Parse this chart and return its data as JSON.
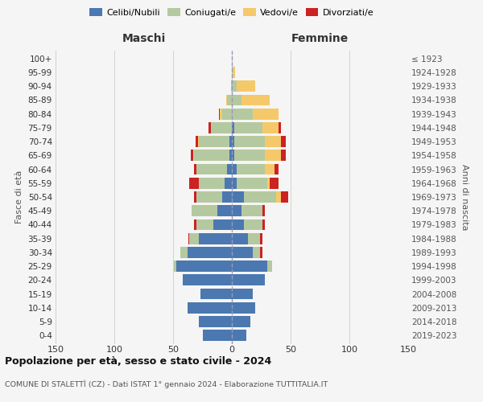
{
  "age_groups": [
    "0-4",
    "5-9",
    "10-14",
    "15-19",
    "20-24",
    "25-29",
    "30-34",
    "35-39",
    "40-44",
    "45-49",
    "50-54",
    "55-59",
    "60-64",
    "65-69",
    "70-74",
    "75-79",
    "80-84",
    "85-89",
    "90-94",
    "95-99",
    "100+"
  ],
  "birth_years": [
    "2019-2023",
    "2014-2018",
    "2009-2013",
    "2004-2008",
    "1999-2003",
    "1994-1998",
    "1989-1993",
    "1984-1988",
    "1979-1983",
    "1974-1978",
    "1969-1973",
    "1964-1968",
    "1959-1963",
    "1954-1958",
    "1949-1953",
    "1944-1948",
    "1939-1943",
    "1934-1938",
    "1929-1933",
    "1924-1928",
    "≤ 1923"
  ],
  "maschi": {
    "celibi": [
      25,
      28,
      38,
      27,
      42,
      47,
      38,
      28,
      16,
      12,
      8,
      6,
      4,
      2,
      2,
      0,
      0,
      0,
      0,
      0,
      0
    ],
    "coniugati": [
      0,
      0,
      0,
      0,
      0,
      2,
      6,
      8,
      14,
      22,
      22,
      22,
      26,
      30,
      26,
      18,
      8,
      4,
      1,
      0,
      0
    ],
    "vedovi": [
      0,
      0,
      0,
      0,
      0,
      0,
      0,
      0,
      0,
      0,
      0,
      0,
      0,
      1,
      1,
      0,
      2,
      1,
      0,
      0,
      0
    ],
    "divorziati": [
      0,
      0,
      0,
      0,
      0,
      0,
      0,
      1,
      2,
      0,
      2,
      8,
      2,
      2,
      2,
      2,
      1,
      0,
      0,
      0,
      0
    ]
  },
  "femmine": {
    "nubili": [
      12,
      16,
      20,
      18,
      28,
      30,
      18,
      14,
      10,
      8,
      10,
      4,
      4,
      2,
      2,
      2,
      0,
      0,
      0,
      0,
      0
    ],
    "coniugate": [
      0,
      0,
      0,
      0,
      0,
      4,
      6,
      10,
      16,
      18,
      28,
      26,
      24,
      26,
      26,
      24,
      18,
      8,
      4,
      1,
      0
    ],
    "vedove": [
      0,
      0,
      0,
      0,
      0,
      0,
      0,
      0,
      0,
      0,
      4,
      2,
      8,
      14,
      14,
      14,
      22,
      24,
      16,
      2,
      0
    ],
    "divorziate": [
      0,
      0,
      0,
      0,
      0,
      0,
      2,
      2,
      2,
      2,
      6,
      8,
      4,
      4,
      4,
      2,
      0,
      0,
      0,
      0,
      0
    ]
  },
  "colors": {
    "celibi": "#4b78b0",
    "coniugati": "#b5c9a0",
    "vedovi": "#f5c96a",
    "divorziati": "#cc2222"
  },
  "title1": "Popolazione per età, sesso e stato civile - 2024",
  "title2": "COMUNE DI STALETTÌ (CZ) - Dati ISTAT 1° gennaio 2024 - Elaborazione TUTTITALIA.IT",
  "xlabel_left": "Maschi",
  "xlabel_right": "Femmine",
  "ylabel_left": "Fasce di età",
  "ylabel_right": "Anni di nascita",
  "xlim": 150,
  "legend_labels": [
    "Celibi/Nubili",
    "Coniugati/e",
    "Vedovi/e",
    "Divorziati/e"
  ],
  "bg_color": "#f5f5f5"
}
